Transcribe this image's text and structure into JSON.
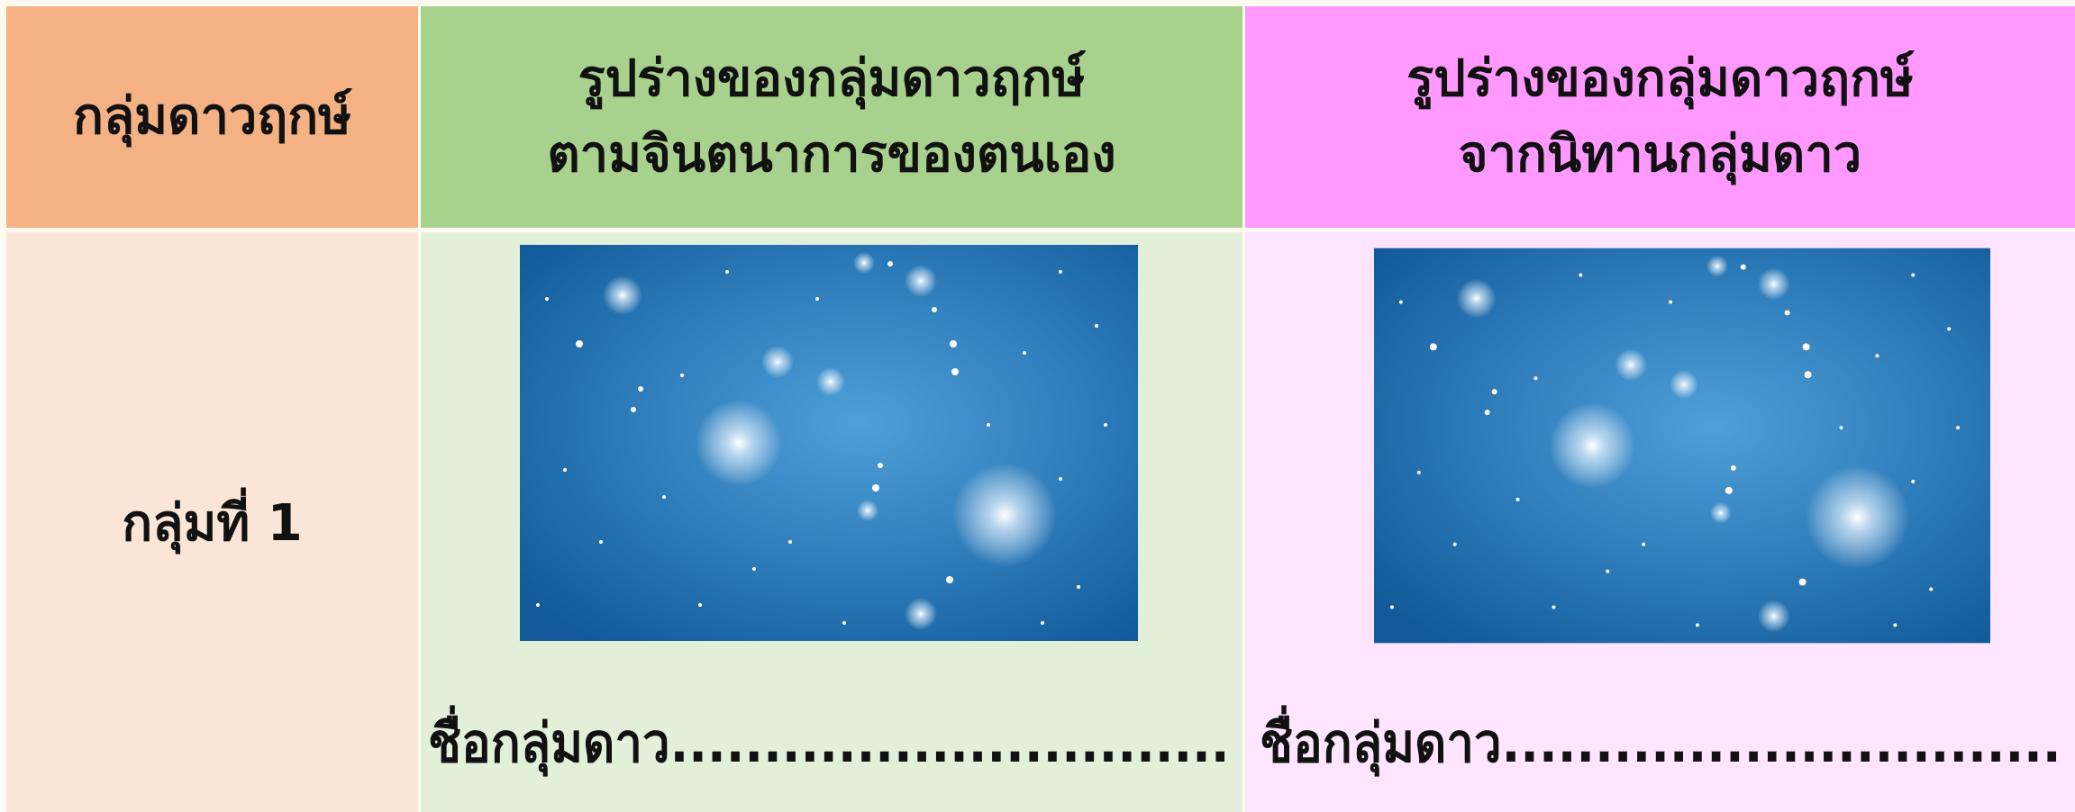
{
  "table": {
    "header": [
      [
        "กลุ่มดาวฤกษ์"
      ],
      [
        "รูปร่างของกลุ่มดาวฤกษ์",
        "ตามจินตนาการของตนเอง"
      ],
      [
        "รูปร่างของกลุ่มดาวฤกษ์",
        "จากนิทานกลุ่มดาว"
      ]
    ],
    "rows": [
      [
        "กลุ่มที่ 1",
        "ชื่อกลุ่มดาว..............................",
        "ชื่อกลุ่มดาว.............................."
      ]
    ]
  }
}
